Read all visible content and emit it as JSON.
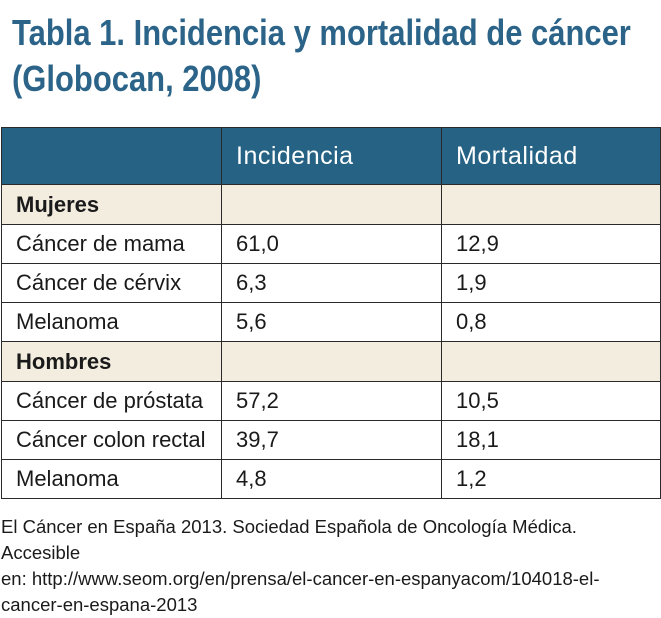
{
  "title": {
    "line1": "Tabla 1. Incidencia y mortalidad de cáncer",
    "line2": "(Globocan, 2008)"
  },
  "table": {
    "columns": [
      "",
      "Incidencia",
      "Mortalidad"
    ],
    "sections": [
      {
        "label": "Mujeres",
        "rows": [
          {
            "name": "Cáncer de mama",
            "incidencia": "61,0",
            "mortalidad": "12,9"
          },
          {
            "name": "Cáncer de cérvix",
            "incidencia": "6,3",
            "mortalidad": "1,9"
          },
          {
            "name": "Melanoma",
            "incidencia": "5,6",
            "mortalidad": "0,8"
          }
        ]
      },
      {
        "label": "Hombres",
        "rows": [
          {
            "name": "Cáncer de próstata",
            "incidencia": "57,2",
            "mortalidad": "10,5"
          },
          {
            "name": "Cáncer colon rectal",
            "incidencia": "39,7",
            "mortalidad": "18,1"
          },
          {
            "name": "Melanoma",
            "incidencia": "4,8",
            "mortalidad": "1,2"
          }
        ]
      }
    ]
  },
  "footnote": {
    "line1": "El Cáncer en España 2013. Sociedad Española de Oncología Médica. Accesible",
    "line2": "en: http://www.seom.org/en/prensa/el-cancer-en-espanyacom/104018-el-",
    "line3": "cancer-en-espana-2013"
  },
  "colors": {
    "title": "#2b6488",
    "header_bg": "#256283",
    "section_bg": "#f3ede0"
  }
}
